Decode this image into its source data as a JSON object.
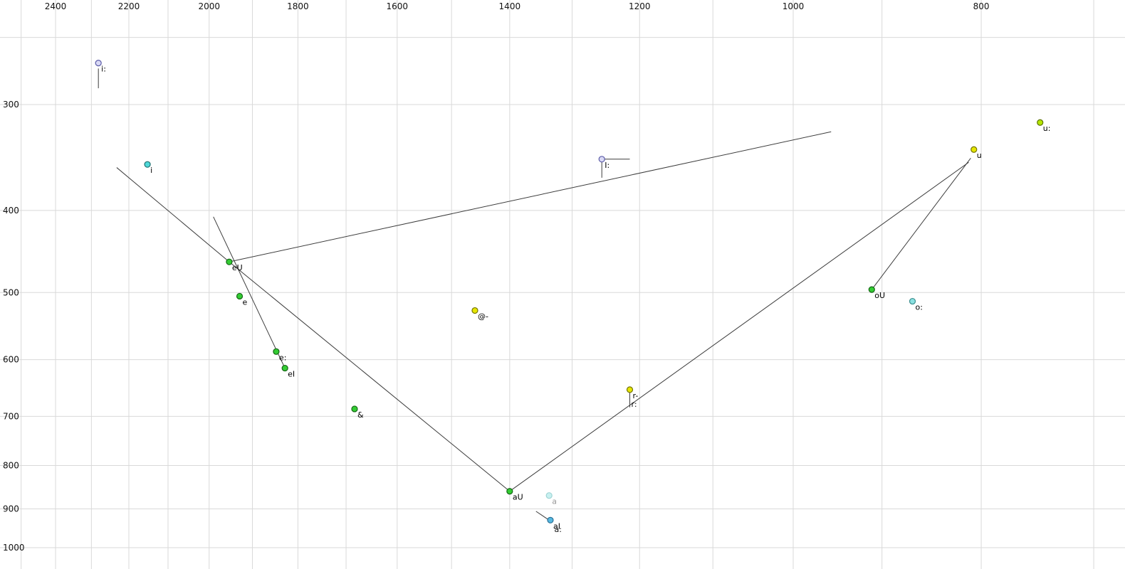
{
  "chart_data": {
    "type": "scatter",
    "title": "",
    "background": "#ffffff",
    "grid_color": "#d9d9d9",
    "segment_color": "#3c3c3c",
    "x_axis": {
      "unit": "Hz",
      "scale": "log",
      "reversed": true,
      "label_side": "top",
      "ticks": [
        {
          "value": 2400,
          "label": "2400"
        },
        {
          "value": 2200,
          "label": "2200"
        },
        {
          "value": 2000,
          "label": "2000"
        },
        {
          "value": 1800,
          "label": "1800"
        },
        {
          "value": 1600,
          "label": "1600"
        },
        {
          "value": 1400,
          "label": "1400"
        },
        {
          "value": 1200,
          "label": "1200"
        },
        {
          "value": 1000,
          "label": "1000"
        },
        {
          "value": 800,
          "label": "800"
        }
      ],
      "minor_ticks": [
        2500,
        2300,
        2100,
        1900,
        1700,
        1500,
        1300,
        1100,
        900,
        700
      ]
    },
    "y_axis": {
      "unit": "Hz",
      "scale": "log",
      "label_side": "left",
      "ticks": [
        {
          "value": 300,
          "label": "300"
        },
        {
          "value": 400,
          "label": "400"
        },
        {
          "value": 500,
          "label": "500"
        },
        {
          "value": 600,
          "label": "600"
        },
        {
          "value": 700,
          "label": "700"
        },
        {
          "value": 800,
          "label": "800"
        },
        {
          "value": 900,
          "label": "900"
        },
        {
          "value": 1000,
          "label": "1000"
        }
      ],
      "minor_ticks": [
        250
      ]
    },
    "points": [
      {
        "label": "i:",
        "f2": 2281,
        "f1": 268,
        "fill": "#d9d9f5",
        "stroke": "#5c5ca8",
        "label_color": "#000000"
      },
      {
        "label": "i",
        "f2": 2152,
        "f1": 353,
        "fill": "#4fd8d8",
        "stroke": "#1f7070",
        "label_color": "#000000"
      },
      {
        "label": "u:",
        "f2": 746,
        "f1": 315,
        "fill": "#b5e600",
        "stroke": "#5c7300",
        "label_color": "#000000"
      },
      {
        "label": "u",
        "f2": 807,
        "f1": 339,
        "fill": "#e6e600",
        "stroke": "#737300",
        "label_color": "#000000"
      },
      {
        "label": "I:",
        "f2": 1255,
        "f1": 348,
        "fill": "#d9d9f5",
        "stroke": "#5c5ca8",
        "label_color": "#000000"
      },
      {
        "label": "eU",
        "f2": 1953,
        "f1": 460,
        "fill": "#33cc33",
        "stroke": "#146614",
        "label_color": "#000000"
      },
      {
        "label": "e",
        "f2": 1929,
        "f1": 505,
        "fill": "#33cc33",
        "stroke": "#146614",
        "label_color": "#000000"
      },
      {
        "label": "@-",
        "f2": 1459,
        "f1": 525,
        "fill": "#e6e600",
        "stroke": "#737300",
        "label_color": "#000000"
      },
      {
        "label": "oU",
        "f2": 911,
        "f1": 496,
        "fill": "#33cc33",
        "stroke": "#146614",
        "label_color": "#000000"
      },
      {
        "label": "o:",
        "f2": 868,
        "f1": 512,
        "fill": "#8ae0e0",
        "stroke": "#3d8f8f",
        "label_color": "#000000"
      },
      {
        "label": "e:",
        "f2": 1847,
        "f1": 587,
        "fill": "#33cc33",
        "stroke": "#146614",
        "label_color": "#000000"
      },
      {
        "label": "eI",
        "f2": 1828,
        "f1": 614,
        "fill": "#33cc33",
        "stroke": "#146614",
        "label_color": "#000000"
      },
      {
        "label": "r-",
        "f2": 1214,
        "f1": 651,
        "fill": "#e6e600",
        "stroke": "#737300",
        "label_color": "#000000"
      },
      {
        "label": "&",
        "f2": 1683,
        "f1": 686,
        "fill": "#33cc33",
        "stroke": "#146614",
        "label_color": "#000000"
      },
      {
        "label": "aU",
        "f2": 1400,
        "f1": 858,
        "fill": "#33cc33",
        "stroke": "#146614",
        "label_color": "#000000"
      },
      {
        "label": "a",
        "f2": 1336,
        "f1": 868,
        "fill": "#c7f0f0",
        "stroke": "#9fd4d4",
        "label_color": "#9a9a9a"
      },
      {
        "label": "aI",
        "f2": 1334,
        "f1": 928,
        "fill": "#55b8e0",
        "stroke": "#2a6e94",
        "label_color": "#000000"
      }
    ],
    "annotations": [
      {
        "text": "r:",
        "f2": 1214,
        "f1": 677
      },
      {
        "text": "a:",
        "f2": 1330,
        "f1": 951
      }
    ],
    "segments": [
      {
        "from": [
          2232,
          356
        ],
        "to": [
          1953,
          460
        ]
      },
      {
        "from": [
          1990,
          407
        ],
        "to": [
          1828,
          614
        ]
      },
      {
        "from": [
          1953,
          460
        ],
        "to": [
          956,
          323
        ]
      },
      {
        "from": [
          1953,
          460
        ],
        "to": [
          1400,
          858
        ]
      },
      {
        "from": [
          1400,
          858
        ],
        "to": [
          812,
          351
        ]
      },
      {
        "from": [
          810,
          347
        ],
        "to": [
          911,
          496
        ]
      },
      {
        "from": [
          2281,
          272
        ],
        "to": [
          2281,
          287
        ]
      },
      {
        "from": [
          1255,
          348
        ],
        "to": [
          1214,
          348
        ]
      },
      {
        "from": [
          1255,
          348
        ],
        "to": [
          1255,
          366
        ]
      },
      {
        "from": [
          1214,
          656
        ],
        "to": [
          1214,
          683
        ]
      },
      {
        "from": [
          1357,
          906
        ],
        "to": [
          1336,
          928
        ]
      }
    ]
  }
}
